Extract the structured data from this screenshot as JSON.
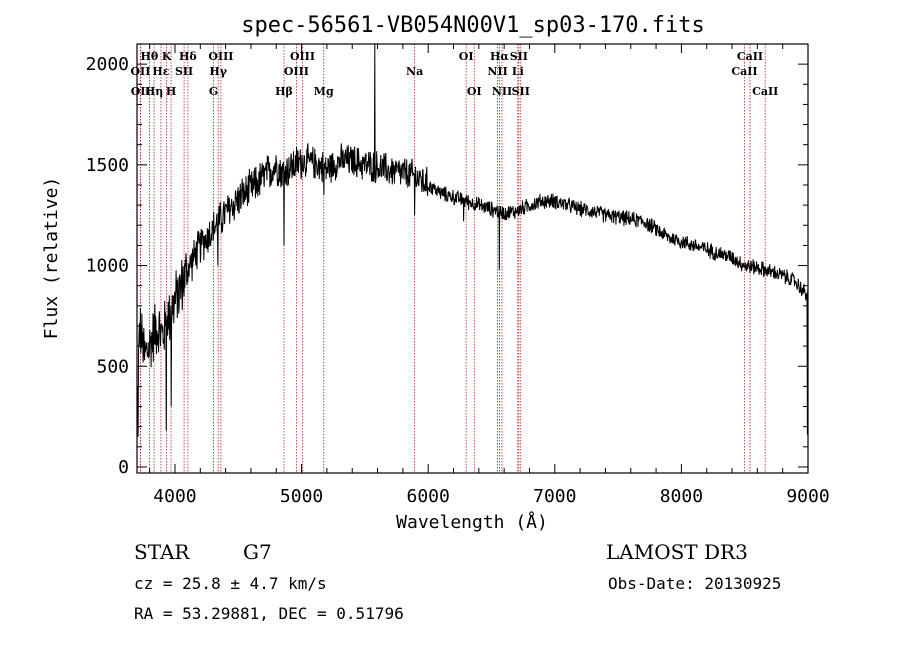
{
  "chart_data": {
    "type": "line",
    "title": "spec-56561-VB054N00V1_sp03-170.fits",
    "xlabel": "Wavelength (Å)",
    "ylabel": "Flux (relative)",
    "xlim": [
      3700,
      9000
    ],
    "ylim": [
      -30,
      2100
    ],
    "xticks": [
      4000,
      5000,
      6000,
      7000,
      8000,
      9000
    ],
    "yticks": [
      0,
      500,
      1000,
      1500,
      2000
    ],
    "spectrum_anchors": [
      [
        3700,
        200
      ],
      [
        3720,
        700
      ],
      [
        3760,
        550
      ],
      [
        3800,
        600
      ],
      [
        3850,
        700
      ],
      [
        3900,
        650
      ],
      [
        3950,
        750
      ],
      [
        4000,
        820
      ],
      [
        4050,
        900
      ],
      [
        4100,
        980
      ],
      [
        4200,
        1100
      ],
      [
        4300,
        1180
      ],
      [
        4400,
        1260
      ],
      [
        4500,
        1330
      ],
      [
        4600,
        1380
      ],
      [
        4700,
        1440
      ],
      [
        4800,
        1500
      ],
      [
        4850,
        1460
      ],
      [
        4900,
        1480
      ],
      [
        5000,
        1520
      ],
      [
        5100,
        1510
      ],
      [
        5200,
        1480
      ],
      [
        5300,
        1520
      ],
      [
        5400,
        1520
      ],
      [
        5500,
        1500
      ],
      [
        5600,
        1490
      ],
      [
        5700,
        1470
      ],
      [
        5800,
        1460
      ],
      [
        5900,
        1440
      ],
      [
        6000,
        1400
      ],
      [
        6100,
        1360
      ],
      [
        6200,
        1340
      ],
      [
        6300,
        1320
      ],
      [
        6400,
        1300
      ],
      [
        6500,
        1280
      ],
      [
        6600,
        1260
      ],
      [
        6700,
        1270
      ],
      [
        6800,
        1300
      ],
      [
        6900,
        1320
      ],
      [
        7000,
        1320
      ],
      [
        7100,
        1300
      ],
      [
        7200,
        1280
      ],
      [
        7300,
        1270
      ],
      [
        7400,
        1250
      ],
      [
        7500,
        1240
      ],
      [
        7600,
        1230
      ],
      [
        7700,
        1220
      ],
      [
        7800,
        1180
      ],
      [
        7900,
        1140
      ],
      [
        8000,
        1120
      ],
      [
        8100,
        1100
      ],
      [
        8200,
        1080
      ],
      [
        8300,
        1060
      ],
      [
        8400,
        1040
      ],
      [
        8500,
        1000
      ],
      [
        8600,
        990
      ],
      [
        8700,
        970
      ],
      [
        8800,
        950
      ],
      [
        8900,
        920
      ],
      [
        8980,
        860
      ]
    ],
    "spectrum_features": [
      {
        "x": 3710,
        "y": 150
      },
      {
        "x": 3930,
        "y": 180
      },
      {
        "x": 3970,
        "y": 300
      },
      {
        "x": 4340,
        "y": 1000
      },
      {
        "x": 4861,
        "y": 1100
      },
      {
        "x": 5175,
        "y": 1350
      },
      {
        "x": 5578,
        "y": 2100
      },
      {
        "x": 5893,
        "y": 1250
      },
      {
        "x": 6563,
        "y": 980
      },
      {
        "x": 6280,
        "y": 1220
      },
      {
        "x": 8995,
        "y": 160
      }
    ],
    "lines": [
      {
        "label": "Hθ",
        "wl": 3798,
        "row": 1
      },
      {
        "label": "OII",
        "wl": 3727,
        "row": 2
      },
      {
        "label": "OII",
        "wl": 3729,
        "row": 3
      },
      {
        "label": "Hε",
        "wl": 3889,
        "row": 2
      },
      {
        "label": "Hη",
        "wl": 3835,
        "row": 3
      },
      {
        "label": "K",
        "wl": 3934,
        "row": 1
      },
      {
        "label": "SII",
        "wl": 4072,
        "row": 2
      },
      {
        "label": "H",
        "wl": 3969,
        "row": 3
      },
      {
        "label": "Hδ",
        "wl": 4102,
        "row": 1
      },
      {
        "label": "OIII",
        "wl": 4363,
        "row": 1
      },
      {
        "label": "Hγ",
        "wl": 4341,
        "row": 2
      },
      {
        "label": "G",
        "wl": 4305,
        "row": 3
      },
      {
        "label": "OIII",
        "wl": 5007,
        "row": 1
      },
      {
        "label": "OIII",
        "wl": 4959,
        "row": 2
      },
      {
        "label": "Hβ",
        "wl": 4861,
        "row": 3
      },
      {
        "label": "Mg",
        "wl": 5175,
        "row": 3
      },
      {
        "label": "Na",
        "wl": 5893,
        "row": 2
      },
      {
        "label": "OI",
        "wl": 6300,
        "row": 1
      },
      {
        "label": "OI",
        "wl": 6364,
        "row": 3
      },
      {
        "label": "Hα",
        "wl": 6563,
        "row": 1
      },
      {
        "label": "NII",
        "wl": 6548,
        "row": 2
      },
      {
        "label": "NII",
        "wl": 6583,
        "row": 3
      },
      {
        "label": "SII",
        "wl": 6716,
        "row": 1
      },
      {
        "label": "Li",
        "wl": 6708,
        "row": 2
      },
      {
        "label": "SII",
        "wl": 6731,
        "row": 3
      },
      {
        "label": "CaII",
        "wl": 8542,
        "row": 1
      },
      {
        "label": "CaII",
        "wl": 8498,
        "row": 2
      },
      {
        "label": "CaII",
        "wl": 8662,
        "row": 3
      }
    ]
  },
  "info": {
    "object_class": "STAR",
    "subclass": "G7",
    "survey": "LAMOST DR3",
    "redshift_text": "cz = 25.8 ± 4.7 km/s",
    "obs_date": "Obs-Date: 20130925",
    "coords": "RA =  53.29881, DEC =    0.51796"
  },
  "colors": {
    "line_marker": "#b22222",
    "axis": "#000000",
    "spectrum": "#000000"
  }
}
